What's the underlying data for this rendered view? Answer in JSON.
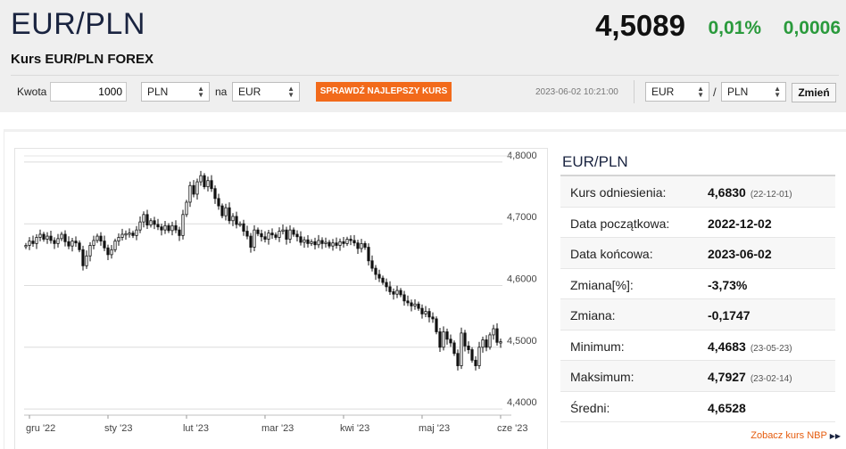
{
  "header": {
    "pair": "EUR/PLN",
    "subtitle": "Kurs EUR/PLN FOREX",
    "price": "4,5089",
    "change_pct": "0,01%",
    "change_abs": "0,0006",
    "change_color": "#2a9a3c"
  },
  "converter": {
    "amount_label": "Kwota",
    "amount_value": "1000",
    "from_currency": "PLN",
    "to_label": "na",
    "to_currency": "EUR",
    "check_button": "SPRAWDŹ NAJLEPSZY KURS",
    "check_button_color": "#f26a1b"
  },
  "pair_selector": {
    "timestamp": "2023-06-02 10:21:00",
    "base": "EUR",
    "separator": "/",
    "quote": "PLN",
    "change_button": "Zmień"
  },
  "info": {
    "title": "EUR/PLN",
    "rows": [
      {
        "label": "Kurs odniesienia:",
        "value": "4,6830",
        "note": "(22-12-01)"
      },
      {
        "label": "Data początkowa:",
        "value": "2022-12-02",
        "note": ""
      },
      {
        "label": "Data końcowa:",
        "value": "2023-06-02",
        "note": ""
      },
      {
        "label": "Zmiana[%]:",
        "value": "-3,73%",
        "note": ""
      },
      {
        "label": "Zmiana:",
        "value": "-0,1747",
        "note": ""
      },
      {
        "label": "Minimum:",
        "value": "4,4683",
        "note": "(23-05-23)"
      },
      {
        "label": "Maksimum:",
        "value": "4,7927",
        "note": "(23-02-14)"
      },
      {
        "label": "Średni:",
        "value": "4,6528",
        "note": ""
      }
    ],
    "nbp_link": "Zobacz kurs NBP"
  },
  "chart_data": {
    "type": "candlestick",
    "title": "",
    "xlabel": "",
    "ylabel": "",
    "ylim": [
      4.39,
      4.81
    ],
    "y_ticks": [
      "4,8000",
      "4,7000",
      "4,6000",
      "4,5000",
      "4,4000"
    ],
    "y_tick_values": [
      4.8,
      4.7,
      4.6,
      4.5,
      4.4
    ],
    "x_ticks": [
      "gru '22",
      "sty '23",
      "lut '23",
      "mar '23",
      "kwi '23",
      "maj '23",
      "cze '23"
    ],
    "grid": true,
    "candle_up_color": "#ffffff",
    "candle_down_color": "#111111",
    "closes": [
      4.665,
      4.672,
      4.668,
      4.678,
      4.683,
      4.675,
      4.68,
      4.673,
      4.668,
      4.676,
      4.683,
      4.671,
      4.664,
      4.672,
      4.669,
      4.658,
      4.632,
      4.648,
      4.665,
      4.673,
      4.68,
      4.672,
      4.661,
      4.65,
      4.658,
      4.672,
      4.678,
      4.683,
      4.684,
      4.685,
      4.681,
      4.69,
      4.703,
      4.715,
      4.698,
      4.705,
      4.699,
      4.695,
      4.69,
      4.697,
      4.689,
      4.697,
      4.69,
      4.681,
      4.715,
      4.735,
      4.762,
      4.748,
      4.768,
      4.778,
      4.76,
      4.77,
      4.757,
      4.741,
      4.729,
      4.713,
      4.726,
      4.705,
      4.712,
      4.699,
      4.7,
      4.688,
      4.68,
      4.662,
      4.69,
      4.684,
      4.679,
      4.675,
      4.685,
      4.682,
      4.678,
      4.688,
      4.69,
      4.675,
      4.69,
      4.683,
      4.679,
      4.67,
      4.674,
      4.668,
      4.671,
      4.666,
      4.673,
      4.668,
      4.67,
      4.664,
      4.669,
      4.665,
      4.671,
      4.668,
      4.675,
      4.673,
      4.669,
      4.66,
      4.668,
      4.662,
      4.64,
      4.628,
      4.618,
      4.612,
      4.605,
      4.598,
      4.59,
      4.586,
      4.592,
      4.585,
      4.575,
      4.572,
      4.567,
      4.57,
      4.563,
      4.554,
      4.558,
      4.549,
      4.546,
      4.525,
      4.5,
      4.525,
      4.513,
      4.507,
      4.49,
      4.47,
      4.523,
      4.502,
      4.496,
      4.479,
      4.47,
      4.5,
      4.512,
      4.5,
      4.52,
      4.53,
      4.508,
      4.509
    ]
  }
}
